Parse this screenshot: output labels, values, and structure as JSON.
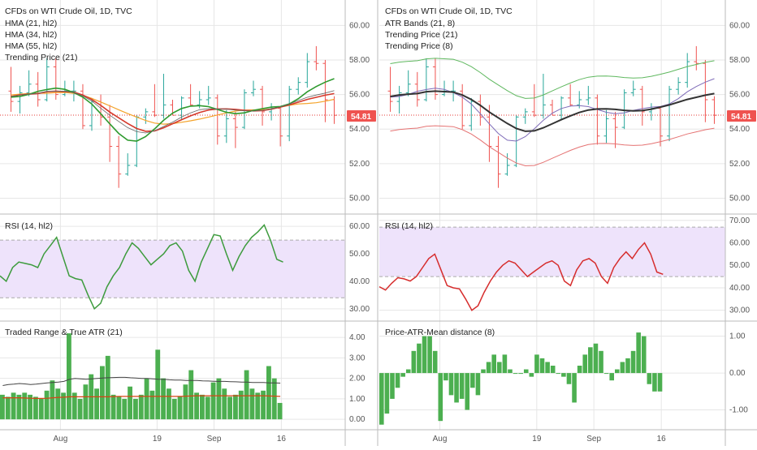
{
  "colors": {
    "up": "#26a69a",
    "down": "#ef5350",
    "hma21": "#2e9a2e",
    "hma34": "#d5392b",
    "hma55": "#f4a32a",
    "trend21": "#666666",
    "atr_mid": "#333333",
    "atr_band": "#5fb85f",
    "atr_band_low": "#e57373",
    "atr_mid_inner": "#7e6bb8",
    "trend8": "#c43a3a",
    "rsi_left": "#3d9b3d",
    "rsi_right": "#d62d2d",
    "rsi_band": "#eee3fb",
    "hist": "#4caf50",
    "price_line": "#e53935",
    "price_label_bg": "#ef5350",
    "grid": "#e6e6e6"
  },
  "left": {
    "title": "CFDs on WTI Crude Oil, 1D, TVC",
    "legend": [
      "HMA (21, hl2)",
      "HMA (34, hl2)",
      "HMA (55, hl2)",
      "Trending Price (21)"
    ],
    "rsi_label": "RSI (14, hl2)",
    "sub_label": "Traded Range & True ATR (21)",
    "price_ticks": [
      "60.00",
      "58.00",
      "56.00",
      "54.00",
      "52.00",
      "50.00"
    ],
    "rsi_ticks": [
      "60.00",
      "50.00",
      "40.00",
      "30.00"
    ],
    "sub_ticks": [
      "4.00",
      "3.00",
      "2.00",
      "1.00",
      "0.00"
    ],
    "price_label": "54.81"
  },
  "right": {
    "title": "CFDs on WTI Crude Oil, 1D, TVC",
    "legend": [
      "ATR Bands (21, 8)",
      "Trending Price (21)",
      "Trending Price (8)"
    ],
    "rsi_label": "RSI (14, hl2)",
    "sub_label": "Price-ATR-Mean distance (8)",
    "price_ticks": [
      "60.00",
      "58.00",
      "56.00",
      "54.00",
      "52.00",
      "50.00"
    ],
    "rsi_ticks": [
      "70.00",
      "60.00",
      "50.00",
      "40.00",
      "30.00"
    ],
    "sub_ticks": [
      "1.00",
      "0.00",
      "-1.00"
    ],
    "price_label": "54.81"
  },
  "x_axis": {
    "labels": [
      "Aug",
      "19",
      "Sep",
      "16"
    ]
  },
  "chart_data": [
    {
      "type": "candlestick",
      "title": "CFDs on WTI Crude Oil, 1D, TVC",
      "ylim": [
        49.6,
        61.0
      ],
      "last_price": 54.81,
      "ohlc": [
        [
          56.2,
          57.6,
          55.0,
          55.6
        ],
        [
          55.6,
          56.5,
          54.9,
          56.1
        ],
        [
          56.1,
          57.4,
          55.9,
          56.6
        ],
        [
          56.6,
          57.3,
          55.3,
          55.7
        ],
        [
          55.7,
          58.1,
          55.6,
          57.6
        ],
        [
          57.6,
          58.1,
          55.7,
          56.0
        ],
        [
          56.0,
          56.8,
          55.9,
          56.2
        ],
        [
          56.2,
          56.8,
          55.6,
          56.2
        ],
        [
          56.2,
          56.6,
          54.0,
          54.2
        ],
        [
          54.2,
          55.8,
          53.9,
          55.6
        ],
        [
          55.6,
          56.0,
          54.2,
          54.7
        ],
        [
          54.7,
          55.4,
          52.1,
          53.0
        ],
        [
          53.0,
          53.6,
          50.6,
          51.4
        ],
        [
          51.4,
          52.6,
          51.3,
          51.9
        ],
        [
          51.9,
          54.8,
          51.8,
          54.7
        ],
        [
          54.7,
          55.2,
          54.3,
          55.0
        ],
        [
          55.0,
          56.6,
          54.7,
          54.8
        ],
        [
          54.8,
          57.2,
          54.6,
          55.4
        ],
        [
          55.4,
          55.7,
          54.8,
          54.8
        ],
        [
          54.8,
          55.9,
          54.5,
          55.8
        ],
        [
          55.8,
          56.6,
          55.3,
          55.4
        ],
        [
          55.4,
          56.2,
          55.2,
          55.7
        ],
        [
          55.7,
          56.5,
          55.4,
          55.8
        ],
        [
          55.8,
          56.0,
          53.1,
          53.6
        ],
        [
          53.6,
          55.1,
          53.2,
          54.6
        ],
        [
          54.6,
          55.0,
          52.9,
          54.1
        ],
        [
          54.1,
          56.3,
          54.0,
          56.1
        ],
        [
          56.1,
          56.8,
          55.9,
          56.3
        ],
        [
          56.3,
          56.5,
          54.2,
          55.0
        ],
        [
          55.0,
          55.5,
          54.5,
          55.2
        ],
        [
          55.2,
          55.3,
          53.0,
          53.6
        ],
        [
          53.6,
          56.5,
          53.3,
          56.3
        ],
        [
          56.3,
          57.0,
          56.0,
          56.7
        ],
        [
          56.7,
          58.4,
          56.4,
          57.9
        ],
        [
          57.9,
          58.8,
          57.4,
          57.8
        ],
        [
          57.8,
          58.0,
          54.4,
          55.7
        ],
        [
          55.7,
          55.9,
          54.3,
          54.8
        ]
      ],
      "rsi_left": [
        42,
        40,
        45,
        47,
        46.5,
        46,
        45,
        50,
        53,
        56,
        49,
        42,
        41,
        40.5,
        35,
        30,
        32,
        38,
        42,
        45,
        50,
        54,
        52,
        49,
        46,
        48,
        50,
        53,
        54,
        51,
        44,
        40,
        47,
        52,
        57,
        56.5,
        50,
        44,
        49,
        53,
        56,
        58,
        60.5,
        55,
        48,
        47
      ],
      "rsi_right": [
        40.5,
        39,
        42,
        44.5,
        44,
        43,
        45,
        49,
        53,
        55,
        48,
        41,
        40,
        39.5,
        35,
        30,
        32,
        38,
        43,
        47,
        50,
        52,
        51,
        48,
        45,
        47,
        49,
        51,
        52,
        50,
        43,
        41,
        48,
        52,
        53,
        51,
        45,
        42,
        49,
        53,
        56,
        53,
        57,
        60,
        55,
        47,
        46
      ],
      "traded_range": [
        1.2,
        1.1,
        1.3,
        1.2,
        1.3,
        1.2,
        1.1,
        1.0,
        1.4,
        1.9,
        1.5,
        1.3,
        4.2,
        1.3,
        1.0,
        1.7,
        2.2,
        1.5,
        2.6,
        3.1,
        1.2,
        1.1,
        1.0,
        1.6,
        1.0,
        1.2,
        2.0,
        1.4,
        3.4,
        2.0,
        1.5,
        1.0,
        1.1,
        1.7,
        2.4,
        1.3,
        1.2,
        1.1,
        1.8,
        2.0,
        1.5,
        1.1,
        1.2,
        1.4,
        2.4,
        1.5,
        1.3,
        1.4,
        2.6,
        2.0,
        0.8
      ],
      "true_atr": [
        1.65,
        1.7,
        1.72,
        1.75,
        1.73,
        1.7,
        1.72,
        1.75,
        1.78,
        1.8,
        1.82,
        1.85,
        1.95,
        2.0,
        1.98,
        1.96,
        1.98,
        2.0,
        2.02,
        2.03,
        2.04,
        2.05,
        2.05,
        2.03,
        2.02,
        2.0,
        2.0,
        1.98,
        1.96,
        1.95,
        1.93,
        1.92,
        1.92,
        1.9,
        1.9,
        1.9,
        1.88,
        1.87,
        1.86,
        1.85,
        1.85,
        1.84,
        1.83,
        1.82,
        1.82,
        1.8,
        1.8,
        1.8,
        1.78,
        1.78,
        1.77
      ],
      "true_atr_avg": [
        1.05,
        1.05,
        1.05,
        1.05,
        1.04,
        1.03,
        1.02,
        1.02,
        1.03,
        1.05,
        1.07,
        1.08,
        1.1,
        1.1,
        1.1,
        1.1,
        1.1,
        1.1,
        1.1,
        1.1,
        1.11,
        1.12,
        1.12,
        1.12,
        1.12,
        1.12,
        1.12,
        1.12,
        1.12,
        1.12,
        1.12,
        1.12,
        1.12,
        1.13,
        1.14,
        1.15,
        1.15,
        1.15,
        1.15,
        1.15,
        1.15,
        1.15,
        1.15,
        1.15,
        1.15,
        1.15,
        1.15,
        1.15,
        1.14,
        1.13,
        1.12
      ],
      "price_atr_mean_distance": [
        -1.4,
        -1.1,
        -0.7,
        -0.4,
        -0.1,
        0.1,
        0.6,
        0.8,
        1.0,
        1.0,
        0.6,
        -1.3,
        -0.2,
        -0.6,
        -0.8,
        -0.7,
        -1.0,
        -0.4,
        -0.6,
        0.1,
        0.3,
        0.5,
        0.3,
        0.5,
        0.1,
        0.0,
        0.0,
        0.1,
        -0.1,
        0.5,
        0.4,
        0.3,
        0.2,
        0.0,
        -0.1,
        -0.3,
        -0.8,
        0.2,
        0.5,
        0.7,
        0.8,
        0.6,
        0.0,
        -0.2,
        0.1,
        0.3,
        0.4,
        0.6,
        1.1,
        1.0,
        -0.3,
        -0.5,
        -0.5
      ]
    }
  ]
}
